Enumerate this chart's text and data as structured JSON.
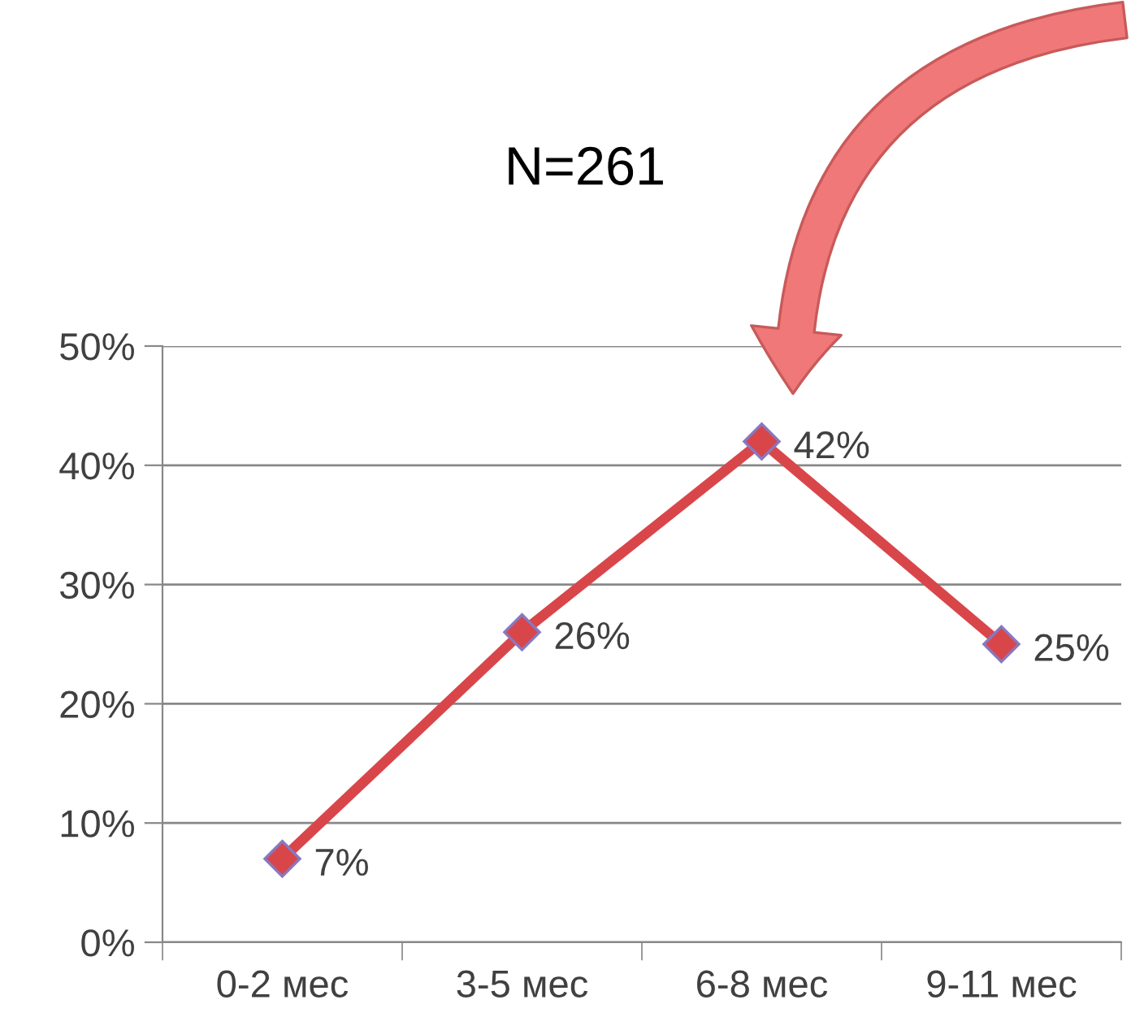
{
  "chart_data": {
    "type": "line",
    "title": "N=261",
    "categories": [
      "0-2 мес",
      "3-5 мес",
      "6-8 мес",
      "9-11 мес"
    ],
    "series": [
      {
        "color": "#d9464a",
        "values": [
          7,
          26,
          42,
          25
        ],
        "value_labels": [
          "7%",
          "26%",
          "42%",
          "25%"
        ]
      }
    ],
    "ylim": [
      0,
      50
    ],
    "yticks": [
      {
        "value": 0,
        "label": "0%"
      },
      {
        "value": 10,
        "label": "10%"
      },
      {
        "value": 20,
        "label": "20%"
      },
      {
        "value": 30,
        "label": "30%"
      },
      {
        "value": 40,
        "label": "40%"
      },
      {
        "value": 50,
        "label": "50%"
      }
    ],
    "grid": "y",
    "legend": false,
    "marker": "diamond",
    "line_style": "solid"
  }
}
